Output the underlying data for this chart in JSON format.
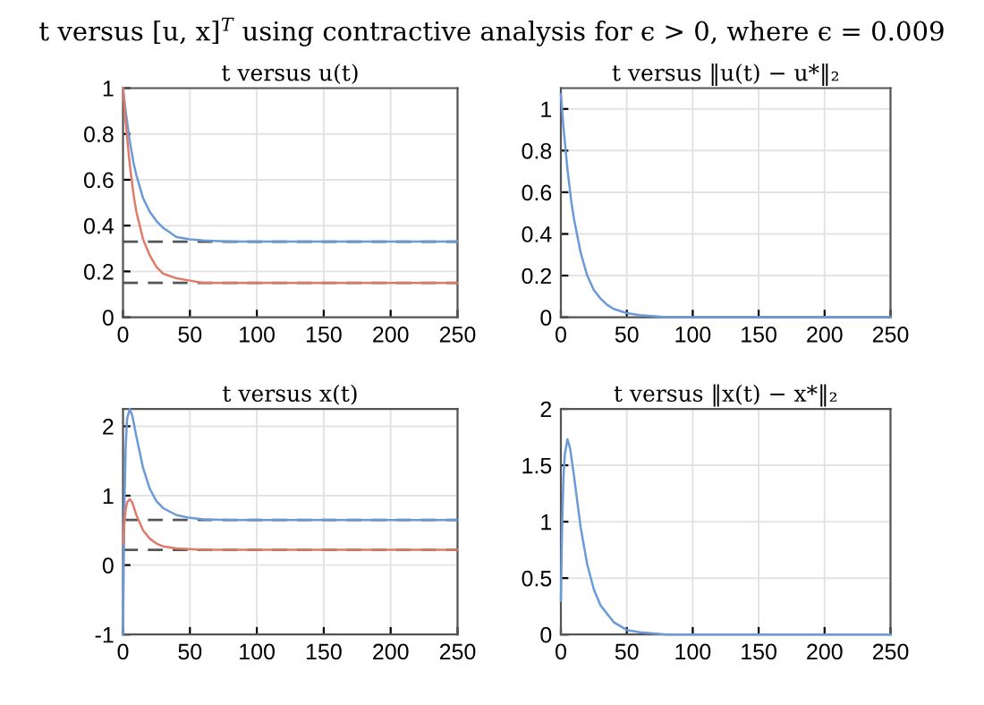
{
  "chart_data": [
    {
      "type": "other",
      "title": "t versus [u, x]$^{T}$ using contractive analysis for ϵ > 0, where ϵ = 0.009"
    },
    {
      "type": "line",
      "title": "t versus u(t)",
      "xlim": [
        0,
        250
      ],
      "xticks": [
        0,
        50,
        100,
        150,
        200,
        250
      ],
      "ylim": [
        0,
        1
      ],
      "yticks": [
        0,
        0.2,
        0.4,
        0.6,
        0.8,
        1
      ],
      "grid": true,
      "line_style": "solid",
      "marker": "none",
      "series": [
        {
          "color": "#6a9ad8",
          "x": [
            0,
            2,
            5,
            8,
            10,
            15,
            20,
            25,
            30,
            35,
            40,
            50,
            60,
            80,
            100,
            150,
            200,
            250
          ],
          "values": [
            1,
            0.9,
            0.77,
            0.67,
            0.62,
            0.52,
            0.46,
            0.42,
            0.39,
            0.37,
            0.35,
            0.34,
            0.335,
            0.33,
            0.33,
            0.33,
            0.33,
            0.33
          ]
        },
        {
          "color": "#e07b6a",
          "x": [
            0,
            2,
            5,
            8,
            10,
            15,
            20,
            25,
            30,
            35,
            40,
            50,
            60,
            80,
            100,
            150,
            200,
            250
          ],
          "values": [
            1,
            0.85,
            0.67,
            0.53,
            0.46,
            0.34,
            0.27,
            0.22,
            0.19,
            0.18,
            0.17,
            0.16,
            0.15,
            0.15,
            0.15,
            0.15,
            0.15,
            0.15
          ]
        }
      ],
      "ref_lines": [
        {
          "axis": "y",
          "value": 0.33,
          "color": "#555555",
          "line_style": "dashed"
        },
        {
          "axis": "y",
          "value": 0.15,
          "color": "#555555",
          "line_style": "dashed"
        }
      ]
    },
    {
      "type": "line",
      "title": "t versus ‖u(t) − u*‖₂",
      "xlim": [
        0,
        250
      ],
      "xticks": [
        0,
        50,
        100,
        150,
        200,
        250
      ],
      "ylim": [
        0,
        1.1
      ],
      "yticks": [
        0,
        0.2,
        0.4,
        0.6,
        0.8,
        1
      ],
      "grid": true,
      "line_style": "solid",
      "marker": "none",
      "series": [
        {
          "color": "#6a9ad8",
          "x": [
            0,
            2,
            5,
            8,
            10,
            15,
            20,
            25,
            30,
            35,
            40,
            50,
            60,
            80,
            100,
            150,
            200,
            250
          ],
          "values": [
            1.07,
            0.91,
            0.71,
            0.55,
            0.47,
            0.31,
            0.2,
            0.13,
            0.09,
            0.06,
            0.04,
            0.02,
            0.01,
            0,
            0,
            0,
            0,
            0
          ]
        }
      ]
    },
    {
      "type": "line",
      "title": "t versus x(t)",
      "xlim": [
        0,
        250
      ],
      "xticks": [
        0,
        50,
        100,
        150,
        200,
        250
      ],
      "ylim": [
        -1,
        2.25
      ],
      "yticks": [
        -1,
        0,
        1,
        2
      ],
      "grid": true,
      "line_style": "solid",
      "marker": "none",
      "series": [
        {
          "color": "#6a9ad8",
          "x": [
            0,
            1,
            2,
            3,
            5,
            7,
            10,
            15,
            20,
            25,
            30,
            40,
            50,
            60,
            80,
            100,
            150,
            200,
            250
          ],
          "values": [
            -1,
            0.8,
            1.7,
            2.1,
            2.25,
            2.15,
            1.85,
            1.4,
            1.1,
            0.92,
            0.82,
            0.72,
            0.68,
            0.66,
            0.65,
            0.65,
            0.65,
            0.65,
            0.65
          ]
        },
        {
          "color": "#e07b6a",
          "x": [
            0,
            1,
            2,
            3,
            5,
            7,
            10,
            15,
            20,
            25,
            30,
            40,
            50,
            60,
            80,
            100,
            150,
            200,
            250
          ],
          "values": [
            0.3,
            0.6,
            0.8,
            0.9,
            0.95,
            0.9,
            0.72,
            0.5,
            0.38,
            0.31,
            0.27,
            0.24,
            0.23,
            0.22,
            0.22,
            0.22,
            0.22,
            0.22,
            0.22
          ]
        }
      ],
      "ref_lines": [
        {
          "axis": "y",
          "value": 0.65,
          "color": "#555555",
          "line_style": "dashed"
        },
        {
          "axis": "y",
          "value": 0.22,
          "color": "#555555",
          "line_style": "dashed"
        }
      ]
    },
    {
      "type": "line",
      "title": "t versus ‖x(t) − x*‖₂",
      "xlim": [
        0,
        250
      ],
      "xticks": [
        0,
        50,
        100,
        150,
        200,
        250
      ],
      "ylim": [
        0,
        2
      ],
      "yticks": [
        0,
        0.5,
        1,
        1.5,
        2
      ],
      "grid": true,
      "line_style": "solid",
      "marker": "none",
      "series": [
        {
          "color": "#6a9ad8",
          "x": [
            0,
            1,
            2,
            3,
            5,
            7,
            10,
            15,
            20,
            25,
            30,
            40,
            50,
            60,
            80,
            100,
            150,
            200,
            250
          ],
          "values": [
            0.3,
            1.0,
            1.4,
            1.6,
            1.73,
            1.65,
            1.4,
            0.95,
            0.62,
            0.4,
            0.26,
            0.11,
            0.04,
            0.02,
            0,
            0,
            0,
            0,
            0
          ]
        }
      ]
    }
  ]
}
